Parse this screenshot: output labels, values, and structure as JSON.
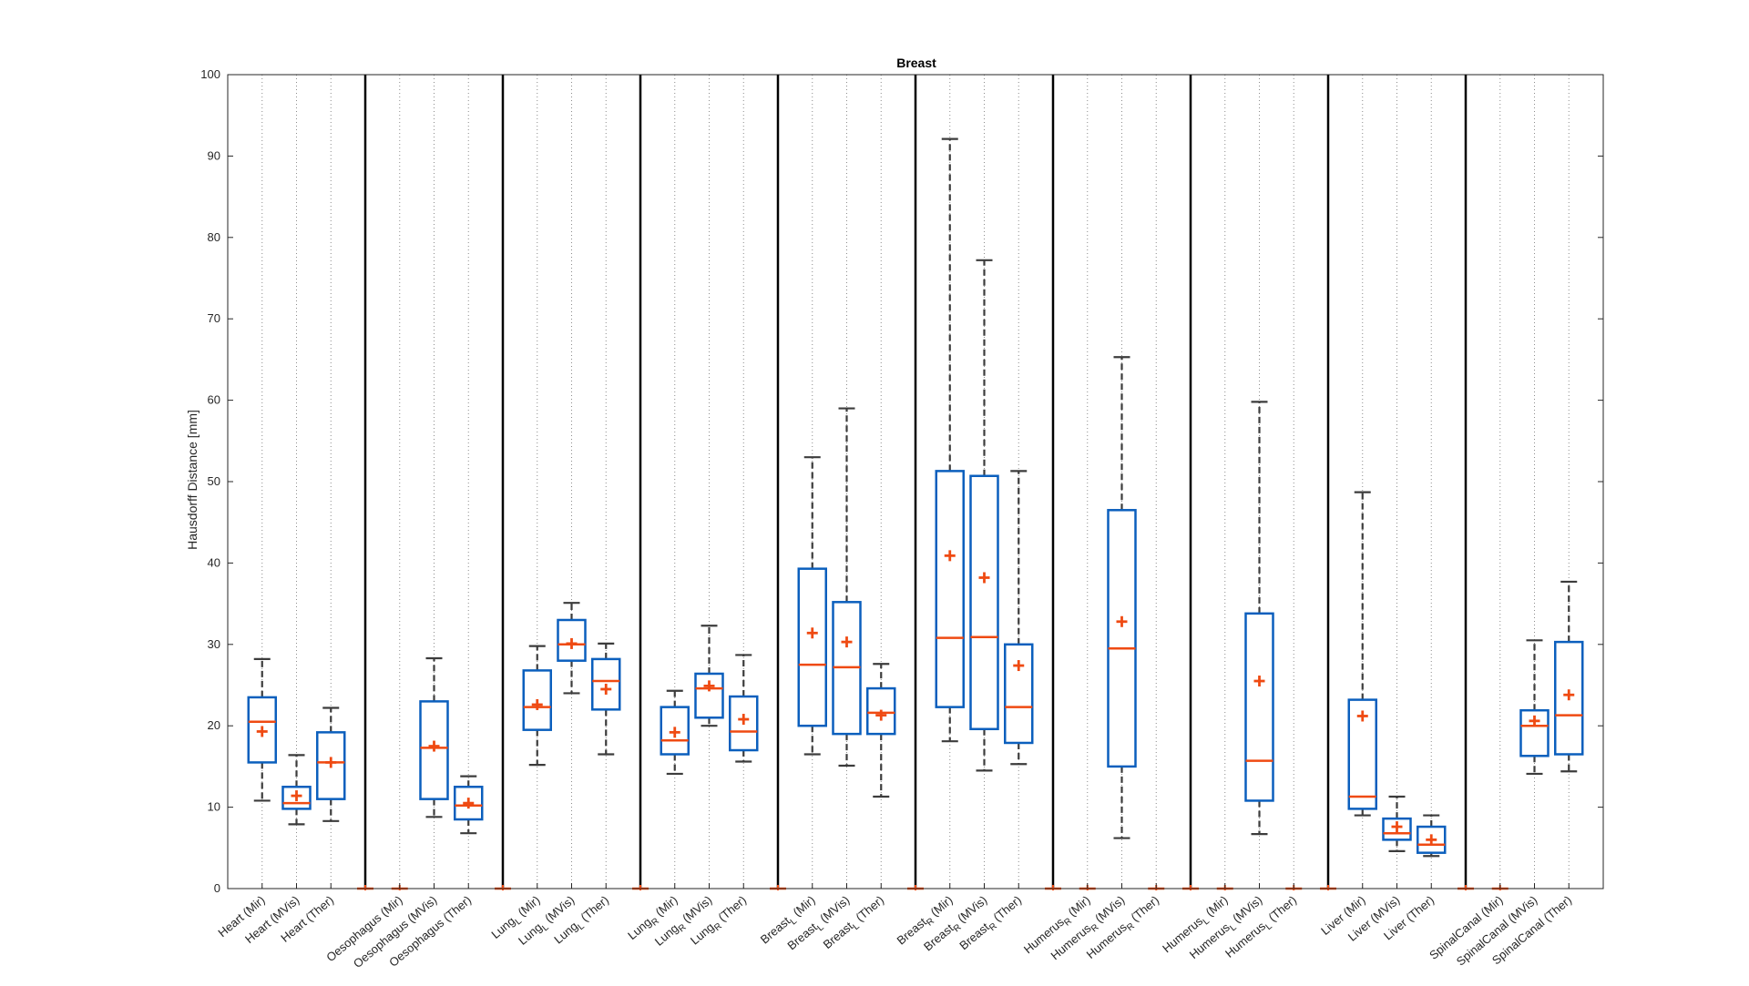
{
  "chart_data": {
    "type": "box",
    "title": "Breast",
    "ylabel": "Hausdorff Distance [mm]",
    "xlabel": "",
    "ylim": [
      0,
      100
    ],
    "yticks": [
      0,
      10,
      20,
      30,
      40,
      50,
      60,
      70,
      80,
      90,
      100
    ],
    "grid": "vertical dotted at each category",
    "group_separators_after_index": [
      2,
      6,
      10,
      14,
      18,
      22,
      26,
      30,
      34
    ],
    "colors": {
      "box": "#0b5fbd",
      "median": "#ef4a12",
      "mean_marker": "#ef4a12",
      "whisker": "#3c3c3c",
      "separator": "#000000",
      "grid": "#8c8c8c"
    },
    "categories": [
      {
        "base": "Heart",
        "sub": "",
        "suffix": " (Mir)"
      },
      {
        "base": "Heart",
        "sub": "",
        "suffix": " (MVis)"
      },
      {
        "base": "Heart",
        "sub": "",
        "suffix": " (Ther)"
      },
      {
        "base": "",
        "sub": "",
        "suffix": ""
      },
      {
        "base": "Oesophagus",
        "sub": "",
        "suffix": " (Mir)"
      },
      {
        "base": "Oesophagus",
        "sub": "",
        "suffix": " (MVis)"
      },
      {
        "base": "Oesophagus",
        "sub": "",
        "suffix": " (Ther)"
      },
      {
        "base": "",
        "sub": "",
        "suffix": ""
      },
      {
        "base": "Lung",
        "sub": "L",
        "suffix": " (Mir)"
      },
      {
        "base": "Lung",
        "sub": "L",
        "suffix": " (MVis)"
      },
      {
        "base": "Lung",
        "sub": "L",
        "suffix": " (Ther)"
      },
      {
        "base": "",
        "sub": "",
        "suffix": ""
      },
      {
        "base": "Lung",
        "sub": "R",
        "suffix": " (Mir)"
      },
      {
        "base": "Lung",
        "sub": "R",
        "suffix": " (MVis)"
      },
      {
        "base": "Lung",
        "sub": "R",
        "suffix": " (Ther)"
      },
      {
        "base": "",
        "sub": "",
        "suffix": ""
      },
      {
        "base": "Breast",
        "sub": "L",
        "suffix": " (Mir)"
      },
      {
        "base": "Breast",
        "sub": "L",
        "suffix": " (MVis)"
      },
      {
        "base": "Breast",
        "sub": "L",
        "suffix": " (Ther)"
      },
      {
        "base": "",
        "sub": "",
        "suffix": ""
      },
      {
        "base": "Breast",
        "sub": "R",
        "suffix": " (Mir)"
      },
      {
        "base": "Breast",
        "sub": "R",
        "suffix": " (MVis)"
      },
      {
        "base": "Breast",
        "sub": "R",
        "suffix": " (Ther)"
      },
      {
        "base": "",
        "sub": "",
        "suffix": ""
      },
      {
        "base": "Humerus",
        "sub": "R",
        "suffix": " (Mir)"
      },
      {
        "base": "Humerus",
        "sub": "R",
        "suffix": " (MVis)"
      },
      {
        "base": "Humerus",
        "sub": "R",
        "suffix": " (Ther)"
      },
      {
        "base": "",
        "sub": "",
        "suffix": ""
      },
      {
        "base": "Humerus",
        "sub": "L",
        "suffix": " (Mir)"
      },
      {
        "base": "Humerus",
        "sub": "L",
        "suffix": " (MVis)"
      },
      {
        "base": "Humerus",
        "sub": "L",
        "suffix": " (Ther)"
      },
      {
        "base": "",
        "sub": "",
        "suffix": ""
      },
      {
        "base": "Liver",
        "sub": "",
        "suffix": " (Mir)"
      },
      {
        "base": "Liver",
        "sub": "",
        "suffix": " (MVis)"
      },
      {
        "base": "Liver",
        "sub": "",
        "suffix": " (Ther)"
      },
      {
        "base": "",
        "sub": "",
        "suffix": ""
      },
      {
        "base": "SpinalCanal",
        "sub": "",
        "suffix": " (Mir)"
      },
      {
        "base": "SpinalCanal",
        "sub": "",
        "suffix": " (MVis)"
      },
      {
        "base": "SpinalCanal",
        "sub": "",
        "suffix": " (Ther)"
      }
    ],
    "boxes": [
      {
        "min": 10.8,
        "q1": 15.5,
        "median": 20.5,
        "q3": 23.5,
        "max": 28.2,
        "mean": 19.3
      },
      {
        "min": 7.9,
        "q1": 9.8,
        "median": 10.5,
        "q3": 12.5,
        "max": 16.4,
        "mean": 11.4
      },
      {
        "min": 8.3,
        "q1": 11.0,
        "median": 15.5,
        "q3": 19.2,
        "max": 22.2,
        "mean": 15.5
      },
      null,
      {
        "min": 0,
        "q1": 0,
        "median": 0,
        "q3": 0,
        "max": 0,
        "mean": 0
      },
      {
        "min": 8.8,
        "q1": 11.0,
        "median": 17.3,
        "q3": 23.0,
        "max": 28.3,
        "mean": 17.5
      },
      {
        "min": 6.8,
        "q1": 8.5,
        "median": 10.2,
        "q3": 12.5,
        "max": 13.8,
        "mean": 10.5
      },
      null,
      {
        "min": 15.2,
        "q1": 19.5,
        "median": 22.3,
        "q3": 26.8,
        "max": 29.8,
        "mean": 22.6
      },
      {
        "min": 24.0,
        "q1": 28.0,
        "median": 30.0,
        "q3": 33.0,
        "max": 35.1,
        "mean": 30.1
      },
      {
        "min": 16.5,
        "q1": 22.0,
        "median": 25.5,
        "q3": 28.2,
        "max": 30.1,
        "mean": 24.5
      },
      null,
      {
        "min": 14.1,
        "q1": 16.5,
        "median": 18.2,
        "q3": 22.3,
        "max": 24.3,
        "mean": 19.2
      },
      {
        "min": 20.0,
        "q1": 21.0,
        "median": 24.6,
        "q3": 26.4,
        "max": 32.3,
        "mean": 24.9
      },
      {
        "min": 15.6,
        "q1": 17.0,
        "median": 19.3,
        "q3": 23.6,
        "max": 28.7,
        "mean": 20.8
      },
      null,
      {
        "min": 16.5,
        "q1": 20.0,
        "median": 27.5,
        "q3": 39.3,
        "max": 53.0,
        "mean": 31.4
      },
      {
        "min": 15.1,
        "q1": 19.0,
        "median": 27.2,
        "q3": 35.2,
        "max": 59.0,
        "mean": 30.3
      },
      {
        "min": 11.3,
        "q1": 19.0,
        "median": 21.6,
        "q3": 24.6,
        "max": 27.6,
        "mean": 21.3
      },
      null,
      {
        "min": 18.1,
        "q1": 22.3,
        "median": 30.8,
        "q3": 51.3,
        "max": 92.1,
        "mean": 40.9
      },
      {
        "min": 14.5,
        "q1": 19.6,
        "median": 30.9,
        "q3": 50.7,
        "max": 77.2,
        "mean": 38.2
      },
      {
        "min": 15.3,
        "q1": 17.9,
        "median": 22.3,
        "q3": 30.0,
        "max": 51.3,
        "mean": 27.4
      },
      null,
      {
        "min": 0,
        "q1": 0,
        "median": 0,
        "q3": 0,
        "max": 0,
        "mean": 0
      },
      {
        "min": 6.2,
        "q1": 15.0,
        "median": 29.5,
        "q3": 46.5,
        "max": 65.3,
        "mean": 32.8
      },
      {
        "min": 0,
        "q1": 0,
        "median": 0,
        "q3": 0,
        "max": 0,
        "mean": 0
      },
      null,
      {
        "min": 0,
        "q1": 0,
        "median": 0,
        "q3": 0,
        "max": 0,
        "mean": 0
      },
      {
        "min": 6.7,
        "q1": 10.8,
        "median": 15.7,
        "q3": 33.8,
        "max": 59.8,
        "mean": 25.5
      },
      {
        "min": 0,
        "q1": 0,
        "median": 0,
        "q3": 0,
        "max": 0,
        "mean": 0
      },
      null,
      {
        "min": 9.0,
        "q1": 9.8,
        "median": 11.3,
        "q3": 23.2,
        "max": 48.7,
        "mean": 21.2
      },
      {
        "min": 4.6,
        "q1": 6.0,
        "median": 6.8,
        "q3": 8.6,
        "max": 11.3,
        "mean": 7.6
      },
      {
        "min": 4.0,
        "q1": 4.4,
        "median": 5.4,
        "q3": 7.6,
        "max": 9.0,
        "mean": 6.0
      },
      null,
      {
        "min": 0,
        "q1": 0,
        "median": 0,
        "q3": 0,
        "max": 0,
        "mean": 0
      },
      {
        "min": 14.1,
        "q1": 16.3,
        "median": 20.0,
        "q3": 21.9,
        "max": 30.5,
        "mean": 20.6
      },
      {
        "min": 14.4,
        "q1": 16.5,
        "median": 21.3,
        "q3": 30.3,
        "max": 37.7,
        "mean": 23.8
      }
    ],
    "zero_markers_at_index": [
      3,
      4,
      7,
      11,
      15,
      19,
      23,
      24,
      26,
      27,
      28,
      30,
      31,
      35,
      36
    ]
  }
}
